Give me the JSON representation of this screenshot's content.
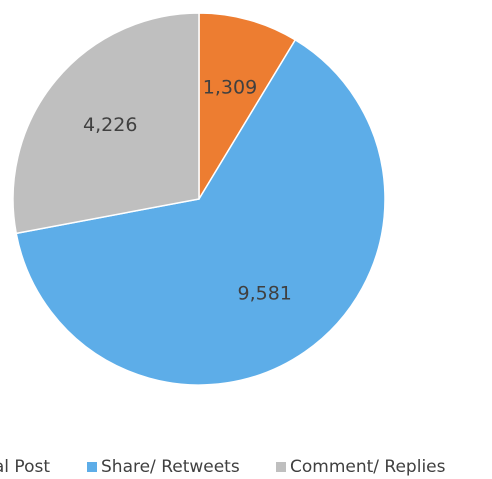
{
  "chart_data": {
    "type": "pie",
    "categories": [
      "Original Post",
      "Share/ Retweets",
      "Comment/ Replies"
    ],
    "values": [
      1309,
      9581,
      4226
    ],
    "value_labels": [
      "1,309",
      "9,581",
      "4,226"
    ],
    "colors": [
      "#ed7d31",
      "#5dade8",
      "#bfbfbf"
    ],
    "legend": "bottom"
  }
}
